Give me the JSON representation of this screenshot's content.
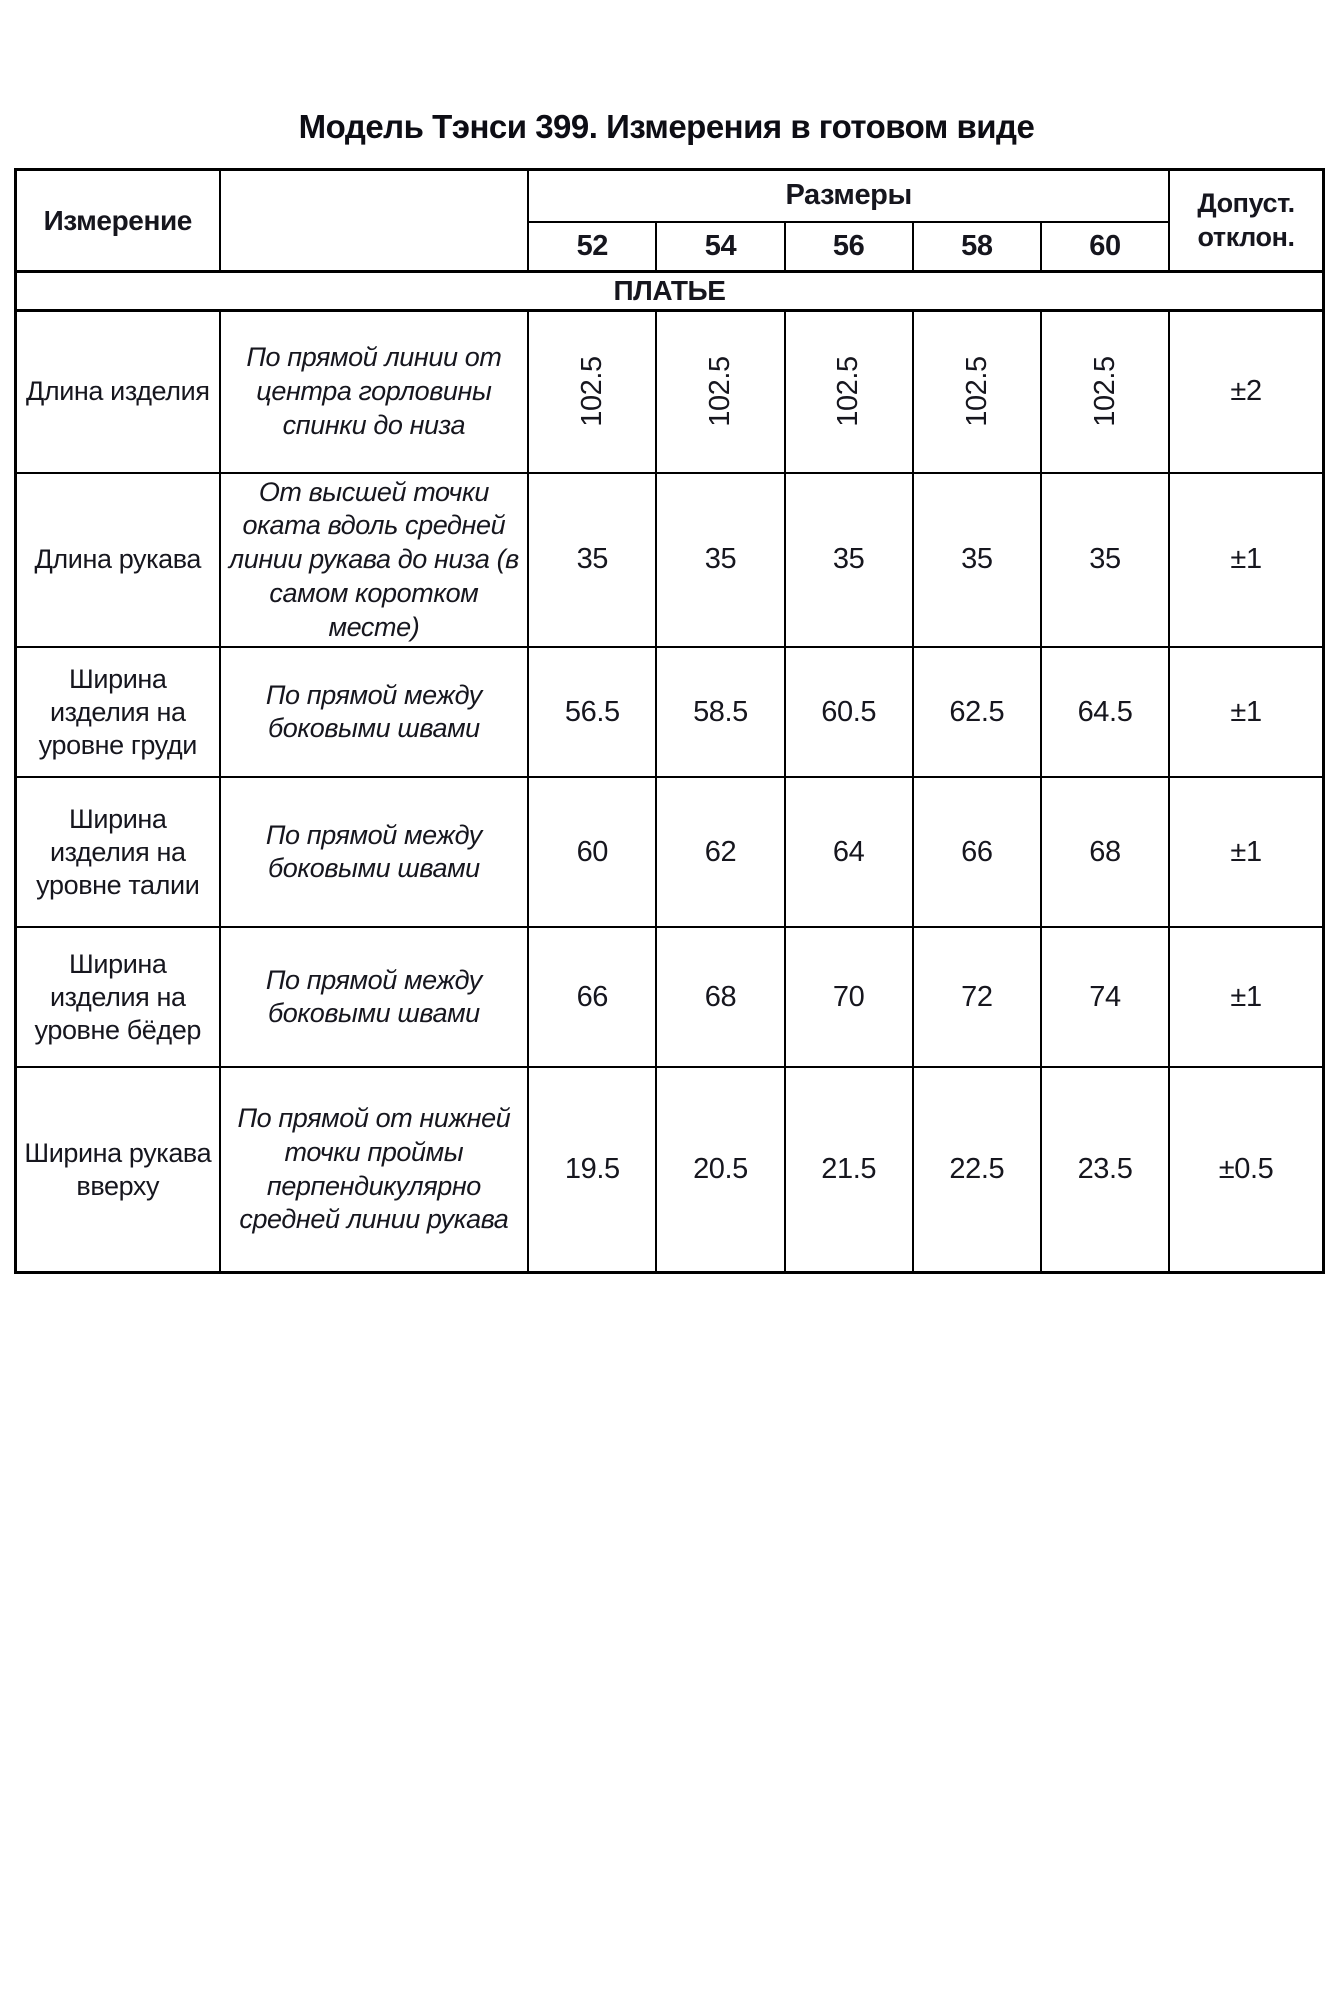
{
  "title": "Модель Тэнси 399. Измерения в готовом виде",
  "table": {
    "header": {
      "measurement": "Измерение",
      "sizes_label": "Размеры",
      "sizes": [
        "52",
        "54",
        "56",
        "58",
        "60"
      ],
      "tolerance": "Допуст. отклон."
    },
    "section": "ПЛАТЬЕ",
    "rows": [
      {
        "name": "Длина изделия",
        "description": "По прямой линии от центра горловины спинки до низа",
        "values": [
          "102.5",
          "102.5",
          "102.5",
          "102.5",
          "102.5"
        ],
        "tolerance": "±2"
      },
      {
        "name": "Длина рукава",
        "description": "От высшей точки оката вдоль средней линии рукава до низа (в самом коротком месте)",
        "values": [
          "35",
          "35",
          "35",
          "35",
          "35"
        ],
        "tolerance": "±1"
      },
      {
        "name": "Ширина изделия на уровне груди",
        "description": "По прямой между боковыми швами",
        "values": [
          "56.5",
          "58.5",
          "60.5",
          "62.5",
          "64.5"
        ],
        "tolerance": "±1"
      },
      {
        "name": "Ширина изделия на уровне талии",
        "description": "По прямой между боковыми швами",
        "values": [
          "60",
          "62",
          "64",
          "66",
          "68"
        ],
        "tolerance": "±1"
      },
      {
        "name": "Ширина изделия на уровне бёдер",
        "description": "По прямой между боковыми швами",
        "values": [
          "66",
          "68",
          "70",
          "72",
          "74"
        ],
        "tolerance": "±1"
      },
      {
        "name": "Ширина рукава вверху",
        "description": "По прямой от нижней точки проймы перпендикулярно средней линии рукава",
        "values": [
          "19.5",
          "20.5",
          "21.5",
          "22.5",
          "23.5"
        ],
        "tolerance": "±0.5"
      }
    ]
  }
}
